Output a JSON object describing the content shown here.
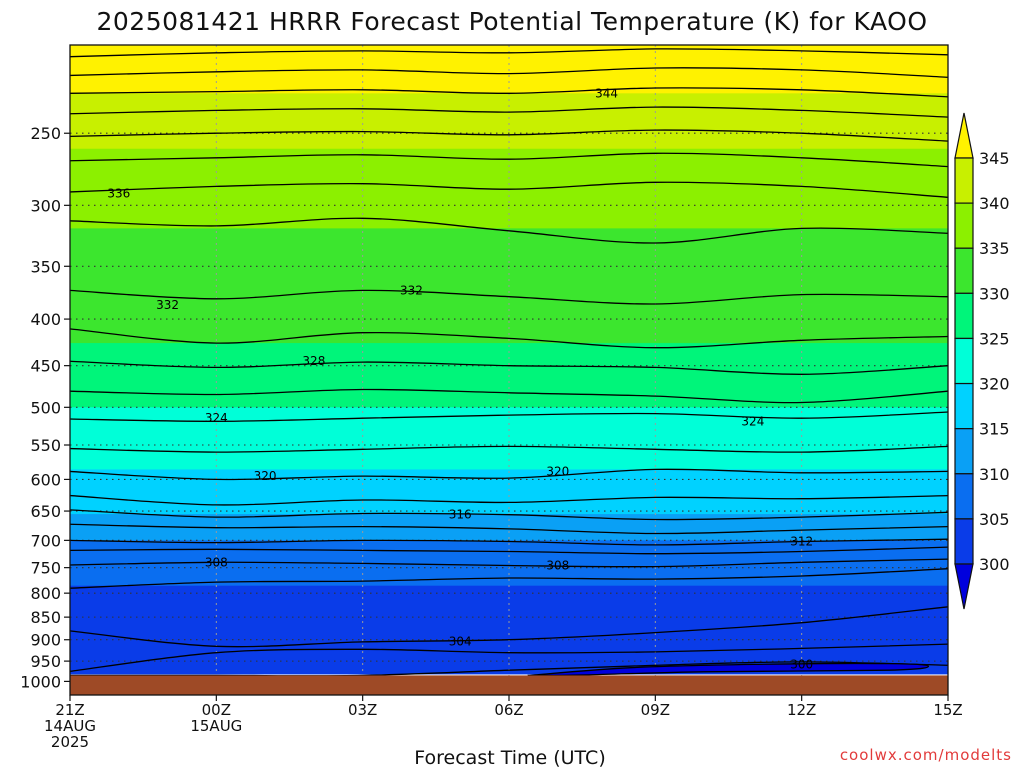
{
  "chart_data": {
    "type": "contour",
    "title": "2025081421 HRRR Forecast Potential Temperature (K) for KAOO",
    "xlabel": "Forecast Time (UTC)",
    "ylabel": "",
    "credit": "coolwx.com/modelts",
    "x_ticks": [
      {
        "t": 0,
        "line1": "21Z",
        "line2": "14AUG",
        "line3": "2025"
      },
      {
        "t": 3,
        "line1": "00Z",
        "line2": "15AUG",
        "line3": ""
      },
      {
        "t": 6,
        "line1": "03Z",
        "line2": "",
        "line3": ""
      },
      {
        "t": 9,
        "line1": "06Z",
        "line2": "",
        "line3": ""
      },
      {
        "t": 12,
        "line1": "09Z",
        "line2": "",
        "line3": ""
      },
      {
        "t": 15,
        "line1": "12Z",
        "line2": "",
        "line3": ""
      },
      {
        "t": 18,
        "line1": "15Z",
        "line2": "",
        "line3": ""
      }
    ],
    "y_ticks": [
      "250",
      "300",
      "350",
      "400",
      "450",
      "500",
      "550",
      "600",
      "650",
      "700",
      "750",
      "800",
      "850",
      "900",
      "950",
      "1000"
    ],
    "y_values": [
      250,
      300,
      350,
      400,
      450,
      500,
      550,
      600,
      650,
      700,
      750,
      800,
      850,
      900,
      950,
      1000
    ],
    "ylim": [
      1000,
      200
    ],
    "y_scale": "log-pressure",
    "xlim": [
      0,
      18
    ],
    "colorbar": {
      "labels": [
        "345",
        "340",
        "335",
        "330",
        "325",
        "320",
        "315",
        "310",
        "305",
        "300"
      ],
      "levels": [
        300,
        305,
        310,
        315,
        320,
        325,
        330,
        335,
        340,
        345
      ],
      "colors": [
        "#0000dd",
        "#0a3ce8",
        "#0a6ef0",
        "#0aa0f5",
        "#00d2ff",
        "#00ffd8",
        "#00f57a",
        "#3ce62e",
        "#8cf000",
        "#c8f000",
        "#fff200"
      ]
    },
    "bands": [
      {
        "color": "#fff200",
        "top": 200,
        "bottom": 226
      },
      {
        "color": "#c8f000",
        "top": 226,
        "bottom": 260
      },
      {
        "color": "#8cf000",
        "top": 260,
        "bottom": 318
      },
      {
        "color": "#3ce62e",
        "top": 318,
        "bottom": 425
      },
      {
        "color": "#00f57a",
        "top": 425,
        "bottom": 500
      },
      {
        "color": "#00ffd8",
        "top": 500,
        "bottom": 585
      },
      {
        "color": "#00d2ff",
        "top": 585,
        "bottom": 655
      },
      {
        "color": "#0aa0f5",
        "top": 655,
        "bottom": 700
      },
      {
        "color": "#0a6ef0",
        "top": 700,
        "bottom": 785
      },
      {
        "color": "#0a3ce8",
        "top": 785,
        "bottom": 980
      }
    ],
    "isentropes": [
      {
        "value": 348,
        "p": [
          206,
          204,
          203,
          204,
          202,
          203,
          205
        ]
      },
      {
        "value": 346,
        "p": [
          216,
          214,
          213,
          215,
          212,
          213,
          217
        ]
      },
      {
        "value": 344,
        "p": [
          226,
          225,
          224,
          226,
          223,
          224,
          228
        ]
      },
      {
        "value": 342,
        "p": [
          238,
          236,
          235,
          237,
          234,
          236,
          240
        ]
      },
      {
        "value": 340,
        "p": [
          252,
          250,
          249,
          251,
          248,
          250,
          255
        ]
      },
      {
        "value": 338,
        "p": [
          268,
          266,
          264,
          267,
          263,
          266,
          272
        ]
      },
      {
        "value": 336,
        "p": [
          290,
          286,
          284,
          288,
          283,
          286,
          294
        ]
      },
      {
        "value": 334,
        "p": [
          312,
          316,
          310,
          320,
          330,
          318,
          322
        ]
      },
      {
        "value": 332,
        "p": [
          372,
          380,
          372,
          378,
          385,
          376,
          378
        ]
      },
      {
        "value": 330,
        "p": [
          410,
          425,
          414,
          420,
          430,
          422,
          418
        ]
      },
      {
        "value": 328,
        "p": [
          445,
          452,
          446,
          450,
          452,
          460,
          450
        ]
      },
      {
        "value": 326,
        "p": [
          480,
          484,
          478,
          482,
          486,
          494,
          480
        ]
      },
      {
        "value": 324,
        "p": [
          515,
          518,
          514,
          510,
          508,
          514,
          506
        ]
      },
      {
        "value": 322,
        "p": [
          555,
          560,
          556,
          552,
          556,
          560,
          552
        ]
      },
      {
        "value": 320,
        "p": [
          588,
          600,
          595,
          598,
          585,
          590,
          588
        ]
      },
      {
        "value": 318,
        "p": [
          625,
          640,
          632,
          636,
          628,
          630,
          625
        ]
      },
      {
        "value": 316,
        "p": [
          648,
          660,
          654,
          656,
          664,
          660,
          652
        ]
      },
      {
        "value": 314,
        "p": [
          672,
          678,
          676,
          680,
          688,
          682,
          676
        ]
      },
      {
        "value": 312,
        "p": [
          700,
          704,
          700,
          702,
          708,
          702,
          698
        ]
      },
      {
        "value": 310,
        "p": [
          718,
          716,
          718,
          720,
          724,
          720,
          712
        ]
      },
      {
        "value": 308,
        "p": [
          745,
          740,
          742,
          746,
          748,
          740,
          734
        ]
      },
      {
        "value": 306,
        "p": [
          790,
          778,
          776,
          770,
          772,
          766,
          752
        ]
      },
      {
        "value": 304,
        "p": [
          880,
          915,
          905,
          900,
          884,
          862,
          828
        ]
      },
      {
        "value": 302,
        "p": [
          975,
          930,
          922,
          930,
          928,
          920,
          910
        ]
      },
      {
        "value": 300,
        "p": [
          985,
          985,
          985,
          972,
          960,
          952,
          960
        ]
      }
    ],
    "contour_labels": [
      {
        "text": "344",
        "t": 11.0,
        "p": 226
      },
      {
        "text": "336",
        "t": 1.0,
        "p": 291
      },
      {
        "text": "332",
        "t": 2.0,
        "p": 386
      },
      {
        "text": "332",
        "t": 7.0,
        "p": 372
      },
      {
        "text": "328",
        "t": 5.0,
        "p": 445
      },
      {
        "text": "324",
        "t": 3.0,
        "p": 514
      },
      {
        "text": "324",
        "t": 14.0,
        "p": 518
      },
      {
        "text": "320",
        "t": 4.0,
        "p": 595
      },
      {
        "text": "320",
        "t": 10.0,
        "p": 588
      },
      {
        "text": "316",
        "t": 8.0,
        "p": 656
      },
      {
        "text": "312",
        "t": 15.0,
        "p": 702
      },
      {
        "text": "308",
        "t": 3.0,
        "p": 740
      },
      {
        "text": "308",
        "t": 10.0,
        "p": 746
      },
      {
        "text": "304",
        "t": 8.0,
        "p": 904
      },
      {
        "text": "300",
        "t": 15.0,
        "p": 958
      }
    ],
    "ground_color": "#9e4a26",
    "grid": true
  }
}
